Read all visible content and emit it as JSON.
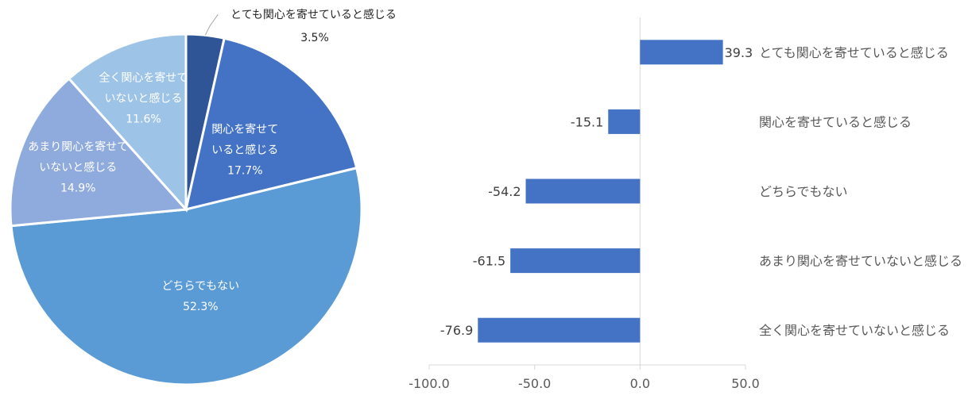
{
  "chart_data": [
    {
      "type": "pie",
      "categories": [
        "とても関心を寄せていると感じる",
        "関心を寄せていると感じる",
        "どちらでもない",
        "あまり関心を寄せていないと感じる",
        "全く関心を寄せていないと感じる"
      ],
      "values": [
        3.5,
        17.7,
        52.3,
        14.9,
        11.6
      ],
      "value_labels": [
        "3.5%",
        "17.7%",
        "52.3%",
        "14.9%",
        "11.6%"
      ],
      "slice_label_lines": [
        [
          "とても関心を寄せていると感じる"
        ],
        [
          "関心を寄せて",
          "いると感じる"
        ],
        [
          "どちらでもない"
        ],
        [
          "あまり関心を寄せて",
          "いないと感じる"
        ],
        [
          "全く関心を寄せて",
          "いないと感じる"
        ]
      ],
      "colors": [
        "#2f5597",
        "#4472c4",
        "#5b9bd5",
        "#8faadc",
        "#9dc3e6"
      ],
      "start": "12 o'clock",
      "direction": "clockwise"
    },
    {
      "type": "bar",
      "orientation": "horizontal",
      "categories": [
        "とても関心を寄せていると感じる",
        "関心を寄せていると感じる",
        "どちらでもない",
        "あまり関心を寄せていないと感じる",
        "全く関心を寄せていないと感じる"
      ],
      "values": [
        39.3,
        -15.1,
        -54.2,
        -61.5,
        -76.9
      ],
      "value_labels": [
        "39.3",
        "-15.1",
        "-54.2",
        "-61.5",
        "-76.9"
      ],
      "xlim": [
        -100,
        50
      ],
      "xticks": [
        -100,
        -50,
        0,
        50
      ],
      "xtick_labels": [
        "-100.0",
        "-50.0",
        "0.0",
        "50.0"
      ],
      "bar_color": "#4472c4",
      "grid": false
    }
  ]
}
